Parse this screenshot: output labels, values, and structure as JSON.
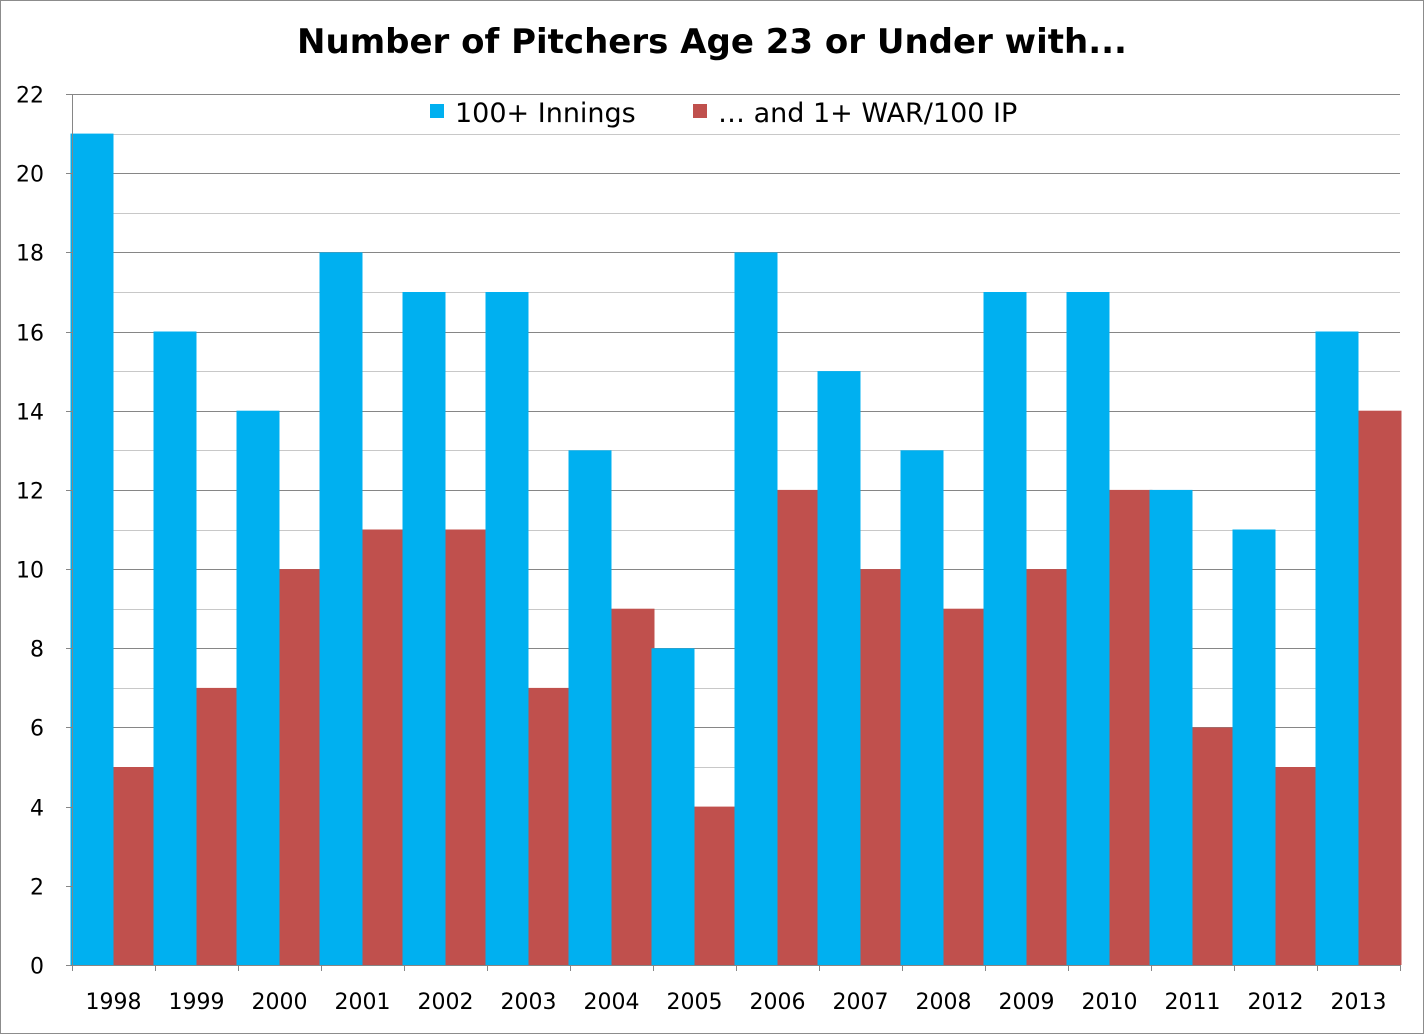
{
  "chart_data": {
    "type": "bar",
    "title": "Number of Pitchers Age 23 or Under with...",
    "xlabel": "",
    "ylabel": "",
    "categories": [
      "1998",
      "1999",
      "2000",
      "2001",
      "2002",
      "2003",
      "2004",
      "2005",
      "2006",
      "2007",
      "2008",
      "2009",
      "2010",
      "2011",
      "2012",
      "2013"
    ],
    "series": [
      {
        "name": "100+ Innings",
        "color": "#00B0F0",
        "values": [
          21,
          16,
          14,
          18,
          17,
          17,
          13,
          8,
          18,
          15,
          13,
          17,
          17,
          12,
          11,
          16
        ]
      },
      {
        "name": "… and 1+ WAR/100 IP",
        "color": "#C0504D",
        "values": [
          5,
          7,
          10,
          11,
          11,
          7,
          9,
          4,
          12,
          10,
          9,
          10,
          12,
          6,
          5,
          14
        ]
      }
    ],
    "ylim": [
      0,
      22
    ],
    "yticks": [
      0,
      2,
      4,
      6,
      8,
      10,
      12,
      14,
      16,
      18,
      20,
      22
    ],
    "grid": true,
    "minor_grid": true,
    "legend_position": "top-center"
  }
}
